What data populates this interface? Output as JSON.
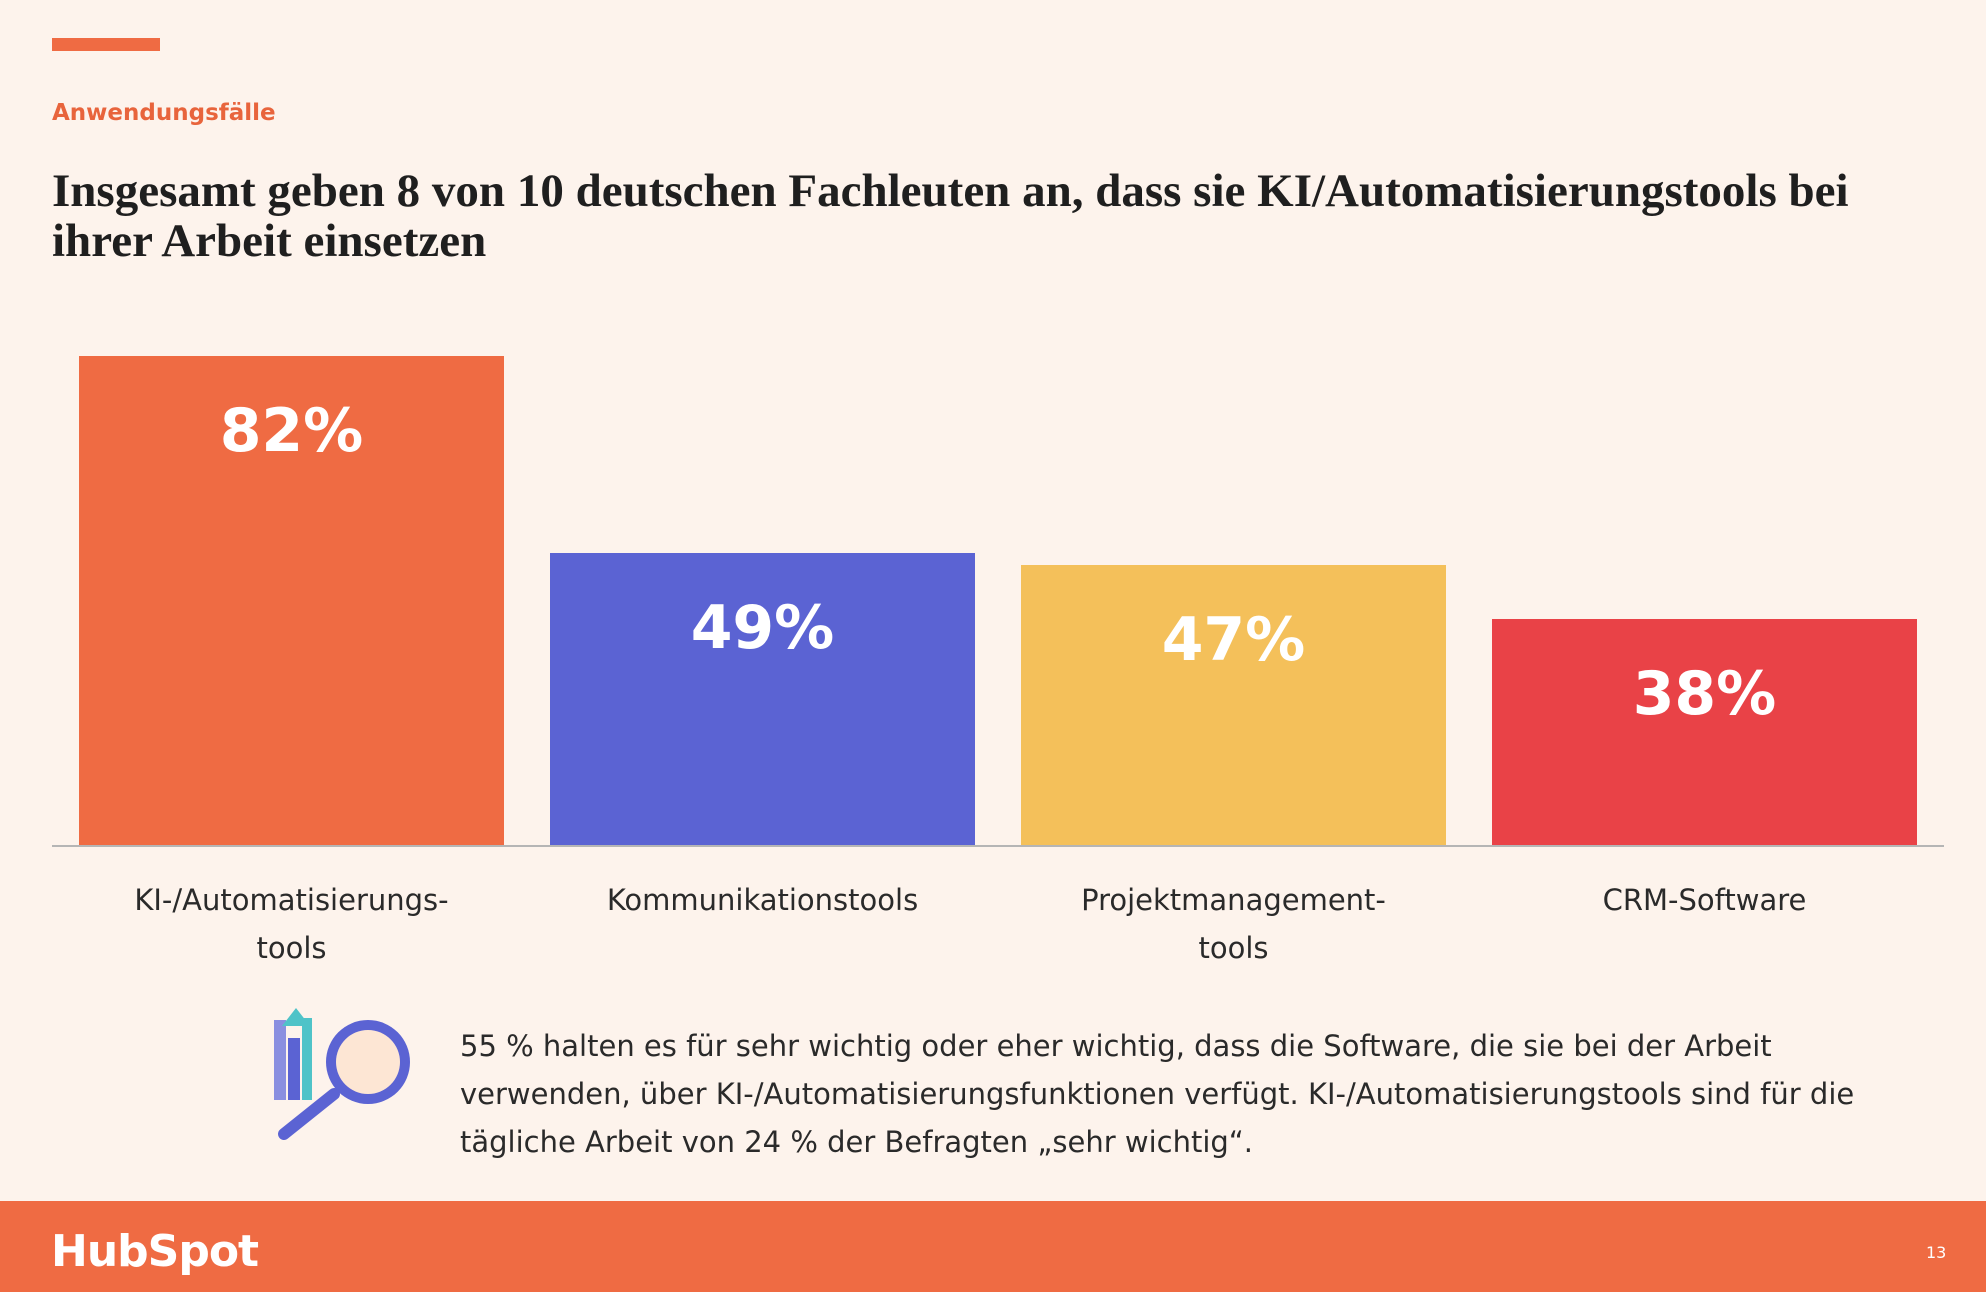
{
  "eyebrow": "Anwendungsfälle",
  "chart_data": {
    "type": "bar",
    "title": "Insgesamt geben 8 von 10 deutschen Fachleuten an, dass sie KI/Automatisierungstools bei ihrer Arbeit einsetzen",
    "categories": [
      "KI-/Automatisierungs-\ntools",
      "Kommunikationstools",
      "Projektmanagement-\ntools",
      "CRM-Software"
    ],
    "values": [
      82,
      49,
      47,
      38
    ],
    "value_labels": [
      "82%",
      "49%",
      "47%",
      "38%"
    ],
    "colors": [
      "#ef6b43",
      "#5b63d3",
      "#f4c05a",
      "#e94247"
    ]
  },
  "note": " 55 % halten es für sehr wichtig oder eher wichtig, dass die Software, die sie bei der Arbeit verwenden, über KI-/Automatisierungsfunktionen verfügt. KI-/Automatisierungstools sind für die tägliche Arbeit von 24 % der Befragten „sehr wichtig“.",
  "logo": "HubSpot",
  "page_number": "13"
}
